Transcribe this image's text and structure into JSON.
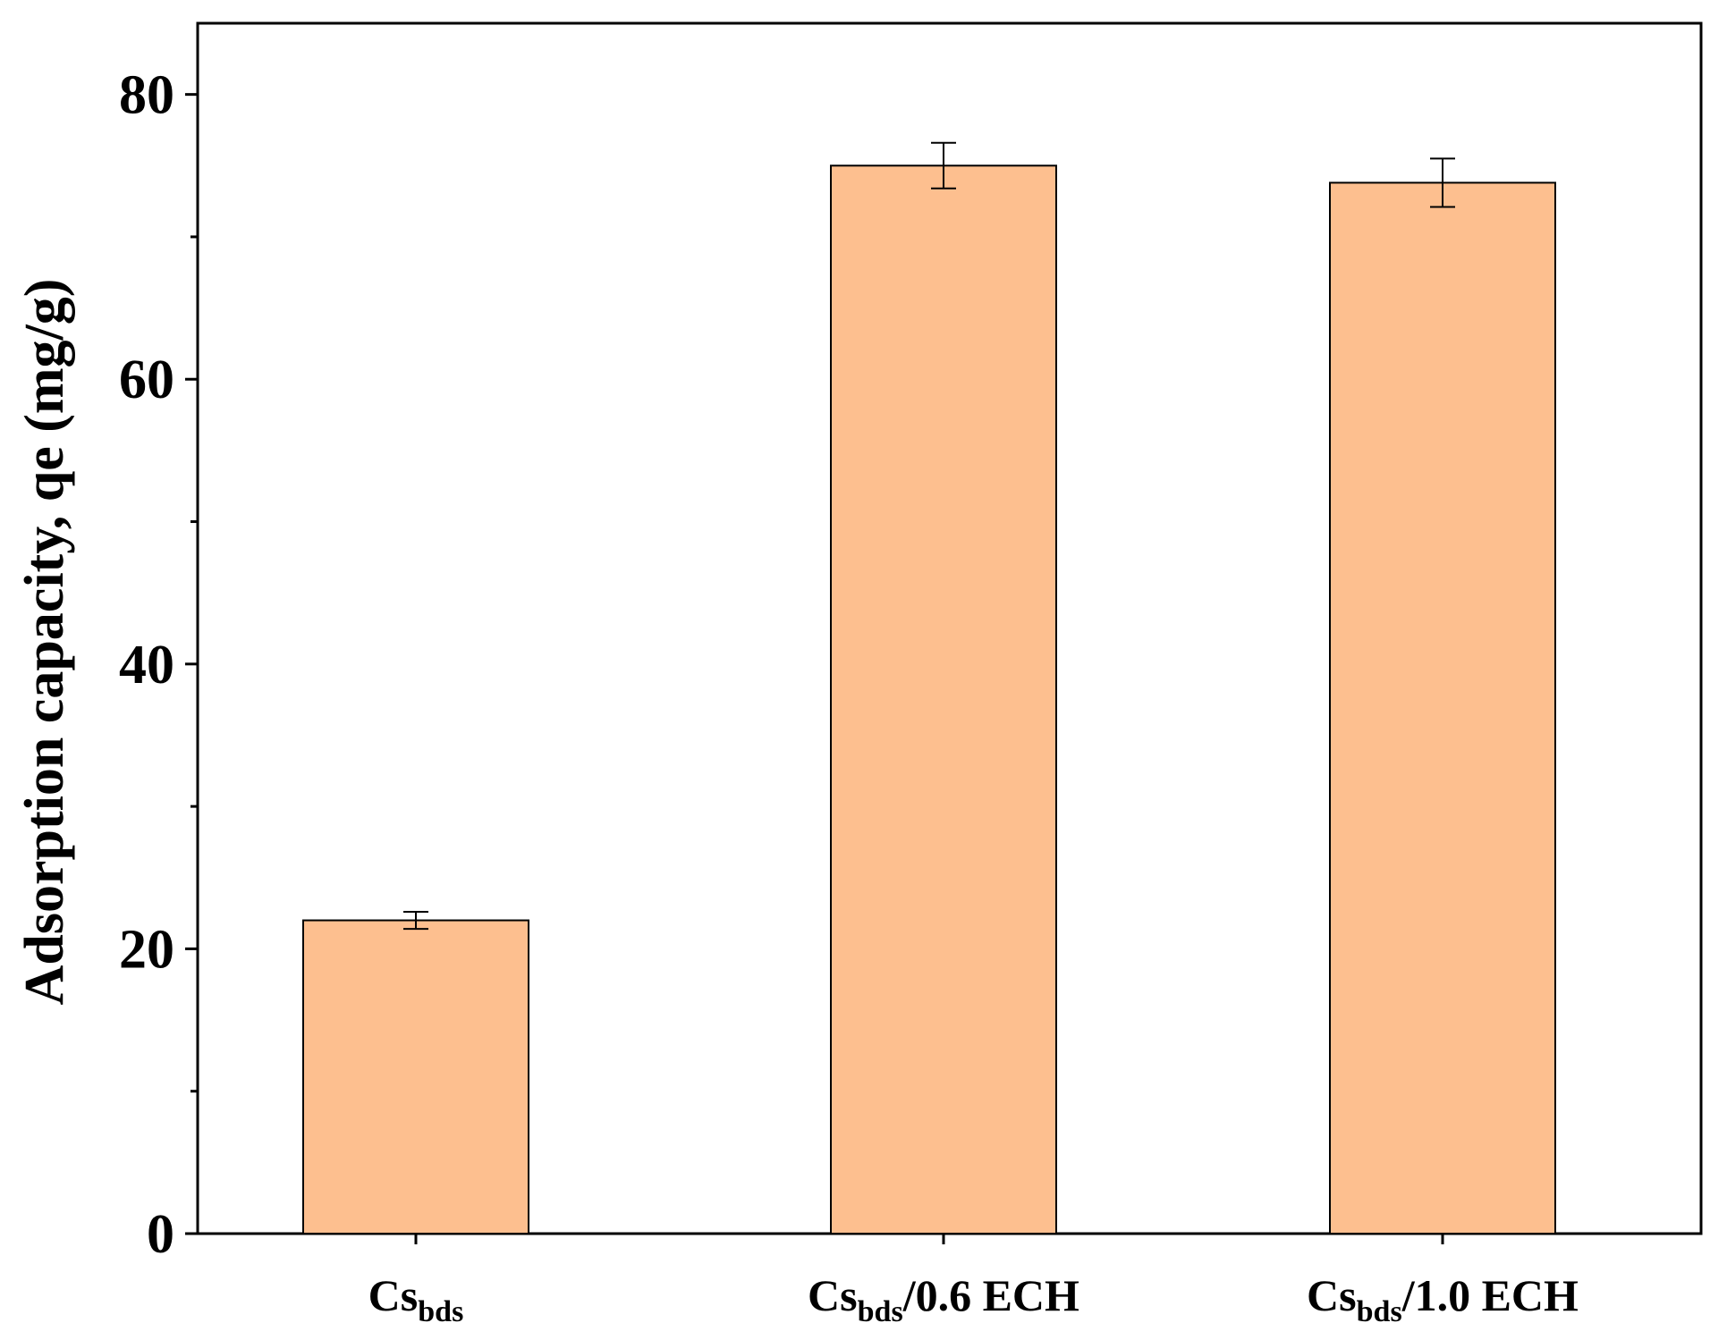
{
  "chart_data": {
    "type": "bar",
    "categories": [
      {
        "main": "Cs",
        "sub": "bds",
        "suffix": ""
      },
      {
        "main": "Cs",
        "sub": "bds",
        "suffix": "/0.6 ECH"
      },
      {
        "main": "Cs",
        "sub": "bds",
        "suffix": "/1.0 ECH"
      }
    ],
    "values": [
      22.0,
      75.0,
      73.8
    ],
    "errors": [
      0.6,
      1.6,
      1.7
    ],
    "title": "",
    "xlabel": "",
    "ylabel": "Adsorption capacity, qe (mg/g)",
    "ylim": [
      0,
      85
    ],
    "y_major_ticks": [
      0,
      20,
      40,
      60,
      80
    ],
    "y_minor_ticks": [
      10,
      30,
      50,
      70
    ],
    "y_tick_labels": [
      "0",
      "20",
      "40",
      "60",
      "80"
    ],
    "grid": false,
    "legend": "none",
    "colors": {
      "bar_fill": "#FDBF8F",
      "bar_stroke": "#000000",
      "axis": "#000000",
      "error_bar": "#000000"
    }
  }
}
